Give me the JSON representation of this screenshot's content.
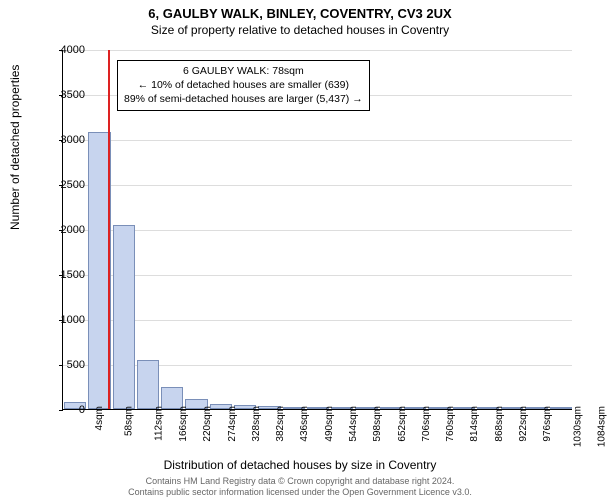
{
  "header": {
    "title_main": "6, GAULBY WALK, BINLEY, COVENTRY, CV3 2UX",
    "title_sub": "Size of property relative to detached houses in Coventry"
  },
  "axes": {
    "ylabel": "Number of detached properties",
    "xlabel": "Distribution of detached houses by size in Coventry",
    "ylim": [
      0,
      4000
    ],
    "yticks": [
      0,
      500,
      1000,
      1500,
      2000,
      2500,
      3000,
      3500,
      4000
    ],
    "xtick_labels": [
      "4sqm",
      "58sqm",
      "112sqm",
      "166sqm",
      "220sqm",
      "274sqm",
      "328sqm",
      "382sqm",
      "436sqm",
      "490sqm",
      "544sqm",
      "598sqm",
      "652sqm",
      "706sqm",
      "760sqm",
      "814sqm",
      "868sqm",
      "922sqm",
      "976sqm",
      "1030sqm",
      "1084sqm"
    ],
    "label_fontsize": 12,
    "tick_fontsize": 10,
    "grid_color": "#dddddd"
  },
  "chart": {
    "type": "histogram",
    "bar_fill": "#c7d4ee",
    "bar_stroke": "#7a8fb8",
    "refline_color": "#dd2222",
    "refline_x_value": 78,
    "background_color": "#ffffff",
    "bars": [
      {
        "x": 4,
        "count": 78
      },
      {
        "x": 58,
        "count": 3080
      },
      {
        "x": 112,
        "count": 2040
      },
      {
        "x": 166,
        "count": 540
      },
      {
        "x": 220,
        "count": 250
      },
      {
        "x": 274,
        "count": 115
      },
      {
        "x": 328,
        "count": 60
      },
      {
        "x": 382,
        "count": 45
      },
      {
        "x": 436,
        "count": 35
      },
      {
        "x": 490,
        "count": 15
      },
      {
        "x": 544,
        "count": 7
      },
      {
        "x": 598,
        "count": 5
      },
      {
        "x": 652,
        "count": 3
      },
      {
        "x": 706,
        "count": 3
      },
      {
        "x": 760,
        "count": 2
      },
      {
        "x": 814,
        "count": 2
      },
      {
        "x": 868,
        "count": 1
      },
      {
        "x": 922,
        "count": 1
      },
      {
        "x": 976,
        "count": 1
      },
      {
        "x": 1030,
        "count": 1
      },
      {
        "x": 1084,
        "count": 1
      }
    ]
  },
  "annotation": {
    "line1": "6 GAULBY WALK: 78sqm",
    "line2": "← 10% of detached houses are smaller (639)",
    "line3": "89% of semi-detached houses are larger (5,437) →"
  },
  "footer": {
    "line1": "Contains HM Land Registry data © Crown copyright and database right 2024.",
    "line2": "Contains public sector information licensed under the Open Government Licence v3.0."
  }
}
